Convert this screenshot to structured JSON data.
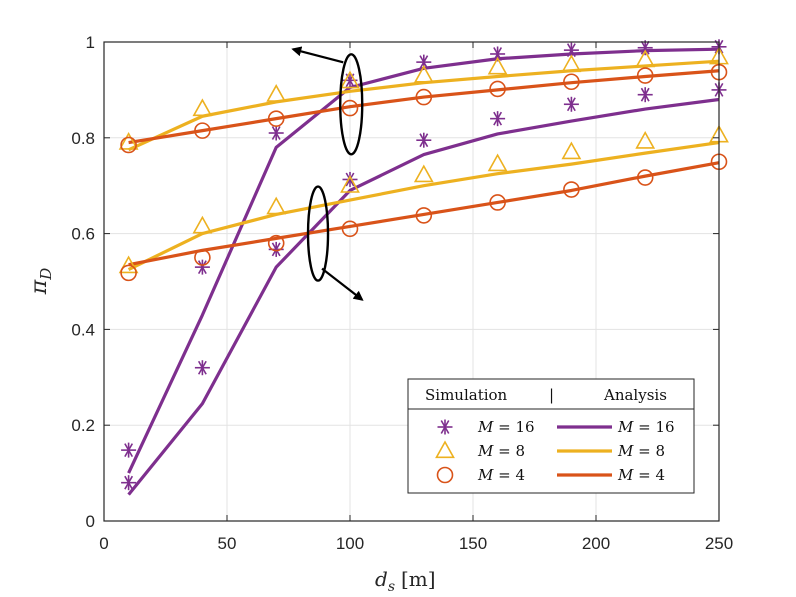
{
  "chart_data": {
    "type": "line",
    "title": "",
    "xlabel": "d_s [m]",
    "xlabel_main": "d",
    "xlabel_sub": "s",
    "xlabel_unit": "[m]",
    "ylabel": "π_D",
    "ylabel_main": "π",
    "ylabel_sub": "D",
    "xlim": [
      0,
      250
    ],
    "ylim": [
      0,
      1
    ],
    "xticks": [
      0,
      50,
      100,
      150,
      200,
      250
    ],
    "xtick_labels": [
      "0",
      "50",
      "100",
      "150",
      "200",
      "250"
    ],
    "yticks": [
      0,
      0.2,
      0.4,
      0.6,
      0.8,
      1
    ],
    "ytick_labels": [
      "0",
      "0.2",
      "0.4",
      "0.6",
      "0.8",
      "1"
    ],
    "grid": true,
    "x": [
      10,
      40,
      70,
      100,
      130,
      160,
      190,
      220,
      250
    ],
    "colors": {
      "M16": "#7e2f8e",
      "M8": "#edb120",
      "M4": "#d95319"
    },
    "series": [
      {
        "name": "Analysis M = 16 (upper group)",
        "kind": "line",
        "color_key": "M16",
        "values": [
          0.1,
          0.43,
          0.78,
          0.905,
          0.945,
          0.965,
          0.975,
          0.982,
          0.985
        ]
      },
      {
        "name": "Analysis M = 8 (upper group)",
        "kind": "line",
        "color_key": "M8",
        "values": [
          0.775,
          0.845,
          0.875,
          0.897,
          0.915,
          0.928,
          0.94,
          0.95,
          0.96
        ]
      },
      {
        "name": "Analysis M = 4 (upper group)",
        "kind": "line",
        "color_key": "M4",
        "values": [
          0.79,
          0.815,
          0.84,
          0.865,
          0.885,
          0.9,
          0.915,
          0.928,
          0.94
        ]
      },
      {
        "name": "Analysis M = 16 (lower group)",
        "kind": "line",
        "color_key": "M16",
        "values": [
          0.055,
          0.245,
          0.53,
          0.69,
          0.765,
          0.808,
          0.835,
          0.86,
          0.88
        ]
      },
      {
        "name": "Analysis M = 8 (lower group)",
        "kind": "line",
        "color_key": "M8",
        "values": [
          0.525,
          0.6,
          0.64,
          0.67,
          0.7,
          0.725,
          0.745,
          0.768,
          0.79
        ]
      },
      {
        "name": "Analysis M = 4 (lower group)",
        "kind": "line",
        "color_key": "M4",
        "values": [
          0.535,
          0.565,
          0.59,
          0.615,
          0.64,
          0.665,
          0.69,
          0.72,
          0.748
        ]
      },
      {
        "name": "Simulation M = 16 (upper group)",
        "kind": "marker",
        "marker": "star",
        "color_key": "M16",
        "values": [
          0.148,
          0.32,
          0.81,
          0.92,
          0.958,
          0.975,
          0.983,
          0.988,
          0.99
        ]
      },
      {
        "name": "Simulation M = 8 (upper group)",
        "kind": "marker",
        "marker": "triangle",
        "color_key": "M8",
        "values": [
          0.79,
          0.86,
          0.89,
          0.918,
          0.93,
          0.947,
          0.952,
          0.962,
          0.968
        ]
      },
      {
        "name": "Simulation M = 4 (upper group)",
        "kind": "marker",
        "marker": "circle",
        "color_key": "M4",
        "values": [
          0.785,
          0.815,
          0.84,
          0.862,
          0.885,
          0.902,
          0.917,
          0.93,
          0.937
        ]
      },
      {
        "name": "Simulation M = 16 (lower group)",
        "kind": "marker",
        "marker": "star",
        "color_key": "M16",
        "values": [
          0.08,
          0.53,
          0.567,
          0.713,
          0.795,
          0.84,
          0.87,
          0.89,
          0.9
        ]
      },
      {
        "name": "Simulation M = 8 (lower group)",
        "kind": "marker",
        "marker": "triangle",
        "color_key": "M8",
        "values": [
          0.532,
          0.615,
          0.655,
          0.7,
          0.722,
          0.745,
          0.77,
          0.792,
          0.805
        ]
      },
      {
        "name": "Simulation M = 4 (lower group)",
        "kind": "marker",
        "marker": "circle",
        "color_key": "M4",
        "values": [
          0.518,
          0.55,
          0.58,
          0.61,
          0.638,
          0.665,
          0.692,
          0.717,
          0.75
        ]
      }
    ],
    "annotations": [
      {
        "type": "ellipse",
        "center": [
          100,
          0.87
        ],
        "note": "group marker around upper curve group, arrow points left"
      },
      {
        "type": "ellipse",
        "center": [
          87,
          0.6
        ],
        "note": "group marker around lower curve group, arrow points down-right"
      }
    ],
    "legend": {
      "position": "bottom-right",
      "header_left": "Simulation",
      "header_sep": "|",
      "header_right": "Analysis",
      "rows": [
        {
          "marker": "star",
          "color_key": "M16",
          "label_var": "M",
          "label_eq": " = 16"
        },
        {
          "marker": "triangle",
          "color_key": "M8",
          "label_var": "M",
          "label_eq": " = 8"
        },
        {
          "marker": "circle",
          "color_key": "M4",
          "label_var": "M",
          "label_eq": " = 4"
        }
      ]
    }
  }
}
